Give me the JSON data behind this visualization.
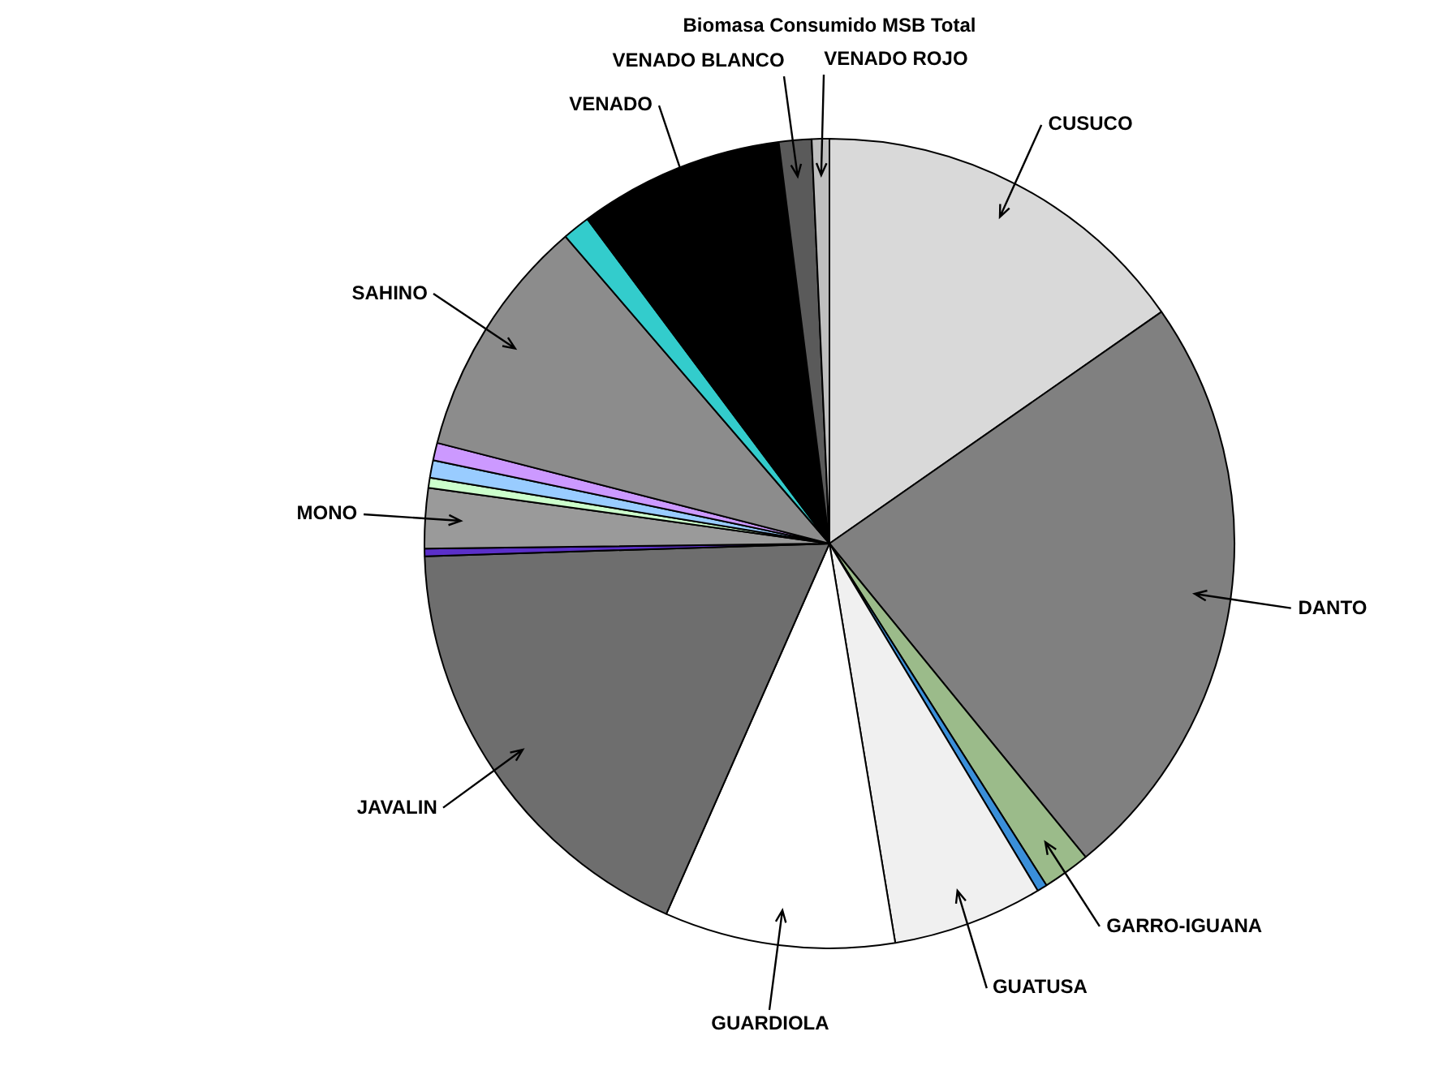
{
  "chart_data": {
    "type": "pie",
    "title": "Biomasa Consumido MSB Total",
    "categories": [
      "CUSUCO",
      "DANTO",
      "GARRO-IGUANA",
      null,
      "GUATUSA",
      "GUARDIOLA",
      "JAVALIN",
      null,
      "MONO",
      null,
      null,
      null,
      "SAHINO",
      null,
      "VENADO",
      "VENADO BLANCO",
      "VENADO ROJO"
    ],
    "values": [
      15.3,
      23.8,
      1.9,
      0.4,
      6.0,
      9.2,
      17.9,
      0.3,
      2.4,
      0.4,
      0.7,
      0.7,
      9.7,
      1.1,
      8.2,
      1.3,
      0.7
    ],
    "colors": [
      "#d9d9d9",
      "#808080",
      "#9bbb8a",
      "#3a8fd9",
      "#f0f0f0",
      "#ffffff",
      "#6e6e6e",
      "#5b2fc9",
      "#9a9a9a",
      "#ccffcc",
      "#99ccff",
      "#cc99ff",
      "#8c8c8c",
      "#33cccc",
      "#000000",
      "#5a5a5a",
      "#bfbfbf"
    ]
  }
}
